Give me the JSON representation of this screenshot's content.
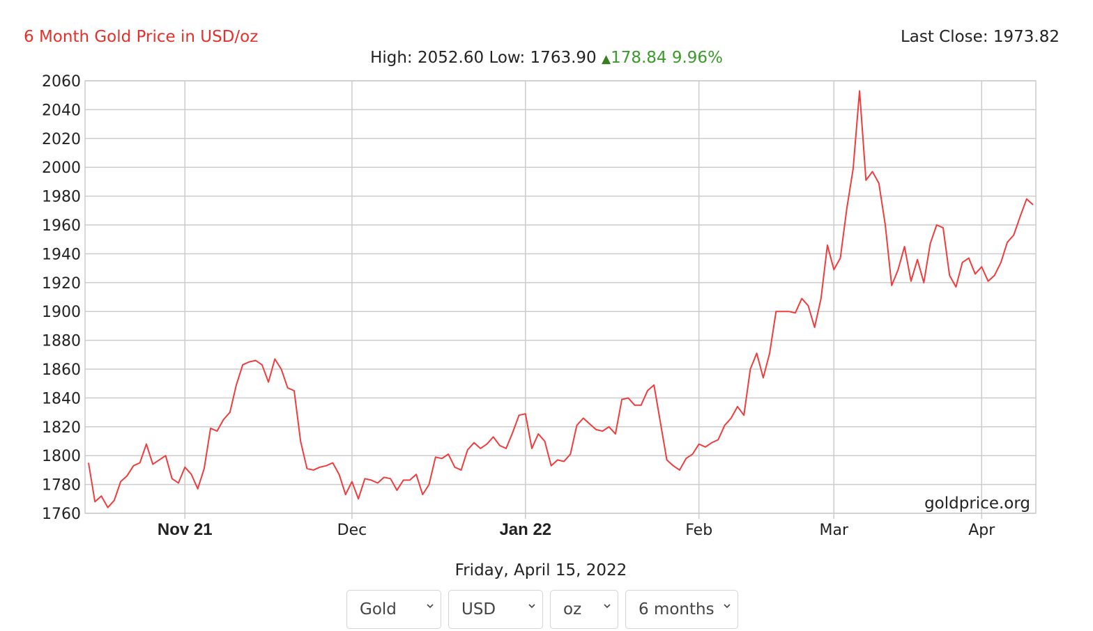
{
  "header": {
    "title": "6 Month Gold Price in USD/oz",
    "last_close_label": "Last Close:",
    "last_close_value": "1973.82",
    "high_label": "High:",
    "high_value": "2052.60",
    "low_label": "Low:",
    "low_value": "1763.90",
    "change_icon": "triangle-up-icon",
    "change_value": "178.84",
    "change_percent": "9.96%"
  },
  "colors": {
    "line": "#f03c3c",
    "title": "#e8302a",
    "up": "#3a9a2a",
    "grid": "#cccccc"
  },
  "chart_data": {
    "type": "line",
    "title": "6 Month Gold Price in USD/oz",
    "xlabel": "",
    "ylabel": "",
    "ylim": [
      1760,
      2060
    ],
    "yticks": [
      1760,
      1780,
      1800,
      1820,
      1840,
      1860,
      1880,
      1900,
      1920,
      1940,
      1960,
      1980,
      2000,
      2020,
      2040,
      2060
    ],
    "xticks": [
      {
        "label": "Nov 21",
        "index": 15,
        "bold": true
      },
      {
        "label": "Dec",
        "index": 41,
        "bold": false
      },
      {
        "label": "Jan 22",
        "index": 68,
        "bold": true
      },
      {
        "label": "Feb",
        "index": 95,
        "bold": false
      },
      {
        "label": "Mar",
        "index": 116,
        "bold": false
      },
      {
        "label": "Apr",
        "index": 139,
        "bold": false
      }
    ],
    "grid": true,
    "watermark": "goldprice.org",
    "series": [
      {
        "values": [
          1795,
          1768,
          1772,
          1764,
          1769,
          1782,
          1786,
          1793,
          1795,
          1808,
          1794,
          1797,
          1800,
          1784,
          1781,
          1792,
          1787,
          1777,
          1791,
          1819,
          1817,
          1825,
          1830,
          1849,
          1863,
          1865,
          1866,
          1863,
          1851,
          1867,
          1860,
          1847,
          1845,
          1810,
          1791,
          1790,
          1792,
          1793,
          1795,
          1787,
          1773,
          1782,
          1770,
          1784,
          1783,
          1781,
          1785,
          1784,
          1776,
          1783,
          1783,
          1787,
          1773,
          1780,
          1799,
          1798,
          1801,
          1792,
          1790,
          1804,
          1809,
          1805,
          1808,
          1813,
          1807,
          1805,
          1816,
          1828,
          1829,
          1805,
          1815,
          1810,
          1793,
          1797,
          1796,
          1801,
          1821,
          1826,
          1822,
          1818,
          1817,
          1820,
          1815,
          1839,
          1840,
          1835,
          1835,
          1845,
          1849,
          1823,
          1797,
          1793,
          1790,
          1798,
          1801,
          1808,
          1806,
          1809,
          1811,
          1821,
          1826,
          1834,
          1828,
          1860,
          1871,
          1854,
          1871,
          1900,
          1900,
          1900,
          1899,
          1909,
          1904,
          1889,
          1909,
          1946,
          1929,
          1937,
          1971,
          1999,
          2053,
          1991,
          1997,
          1989,
          1960,
          1918,
          1929,
          1945,
          1921,
          1936,
          1920,
          1947,
          1960,
          1958,
          1925,
          1917,
          1934,
          1937,
          1926,
          1931,
          1921,
          1925,
          1934,
          1948,
          1953,
          1966,
          1978,
          1974
        ]
      }
    ]
  },
  "footer": {
    "date": "Friday, April 15, 2022",
    "selects": [
      {
        "value": "Gold",
        "icon": "chevron-down-icon"
      },
      {
        "value": "USD",
        "icon": "chevron-down-icon"
      },
      {
        "value": "oz",
        "icon": "chevron-down-icon"
      },
      {
        "value": "6 months",
        "icon": "chevron-down-icon"
      }
    ]
  }
}
